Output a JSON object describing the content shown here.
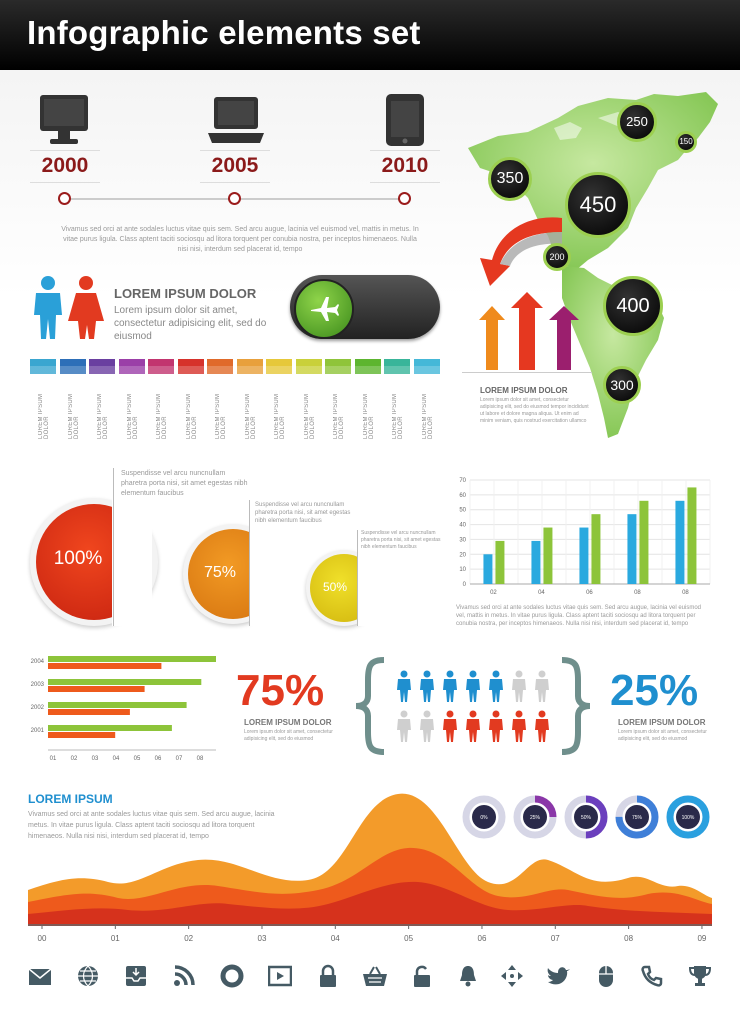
{
  "header": {
    "title": "Infographic elements set"
  },
  "timeline": {
    "items": [
      {
        "year": "2000",
        "icon": "monitor-icon"
      },
      {
        "year": "2005",
        "icon": "laptop-icon"
      },
      {
        "year": "2010",
        "icon": "tablet-icon"
      }
    ],
    "text": "Vivamus sed orci at ante sodales luctus vitae quis sem. Sed arcu augue, lacinia vel euismod vel, mattis in metus. In vitae purus ligula. Class aptent taciti sociosqu ad litora torquent per conubia nostra, per inceptos himenaeos. Nulla nisi nisi, interdum sed placerat id, tempo"
  },
  "people_block": {
    "title": "LOREM IPSUM DOLOR",
    "text": "Lorem ipsum dolor sit amet, consectetur adipisicing elit, sed do eiusmod"
  },
  "swatches": {
    "colors": [
      "#3aa6d0",
      "#2d6fb8",
      "#6a3fa0",
      "#9b3fa8",
      "#c2356f",
      "#d6322b",
      "#e06a2a",
      "#e8a03c",
      "#e6c83a",
      "#c9d03a",
      "#8fc43a",
      "#5db52f",
      "#39b59a",
      "#45b8d8"
    ],
    "label": "LOREM IPSUM DOLOR"
  },
  "map": {
    "bubbles": [
      "250",
      "150",
      "350",
      "450",
      "200",
      "400",
      "300"
    ],
    "title": "LOREM IPSUM DOLOR",
    "text": "Lorem ipsum dolor sit amet, consectetur adipisicing elit, sed do eiusmod tempor incididunt ut labore et dolore magna aliqua. Ut enim ad minim veniam, quis nostrud exercitation ullamco"
  },
  "circles": [
    {
      "label": "100%",
      "text": "Suspendisse vel arcu nuncnullam pharetra porta nisi, sit amet egestas nibh elementum faucibus",
      "color": "#e83a1e"
    },
    {
      "label": "75%",
      "text": "Suspendisse vel arcu nuncnullam pharetra porta nisi, sit amet egestas nibh elementum faucibus",
      "color": "#ef8a1c"
    },
    {
      "label": "50%",
      "text": "Suspendisse vel arcu nuncnullam pharetra porta nisi, sit amet egestas nibh elementum faucibus",
      "color": "#e8d21c"
    }
  ],
  "chart_data": [
    {
      "type": "bar",
      "categories": [
        "02",
        "04",
        "06",
        "08",
        "08"
      ],
      "series": [
        {
          "values": [
            20,
            29,
            38,
            47,
            56
          ],
          "color": "#2aa9df"
        },
        {
          "values": [
            29,
            38,
            47,
            56,
            65
          ],
          "color": "#8dc43a"
        }
      ],
      "yticks": [
        "0",
        "10",
        "20",
        "30",
        "40",
        "50",
        "60",
        "70"
      ],
      "ylim": [
        0,
        70
      ],
      "caption": "Vivamus sed orci at ante sodales luctus vitae quis sem. Sed arcu augue, lacinia vel euismod vel, mattis in metus. In vitae purus ligula. Class aptent taciti sociosqu ad litora torquent per conubia nostra, per inceptos himenaeos. Nulla nisi nisi, interdum sed placerat id, tempo"
    },
    {
      "type": "bar",
      "orientation": "horizontal",
      "categories": [
        "2004",
        "2003",
        "2002",
        "2001"
      ],
      "series": [
        {
          "values": [
            8,
            7.3,
            6.6,
            5.9
          ],
          "color": "#8dc43a"
        },
        {
          "values": [
            5.4,
            4.6,
            3.9,
            3.2
          ],
          "color": "#ee5a1c"
        }
      ],
      "xticks": [
        "01",
        "02",
        "03",
        "04",
        "05",
        "06",
        "07",
        "08"
      ],
      "xlim": [
        0,
        8
      ]
    },
    {
      "type": "area",
      "xticks": [
        "00",
        "01",
        "02",
        "03",
        "04",
        "05",
        "06",
        "07",
        "08",
        "09"
      ],
      "title": "LOREM IPSUM",
      "text": "Vivamus sed orci at ante sodales luctus vitae quis sem. Sed arcu augue, lacinia metus. In vitae purus ligula. Class aptent taciti sociosqu ad litora torquent himenaeos. Nulla nisi nisi, interdum sed placerat id, tempo"
    }
  ],
  "ratio": {
    "left_pct": "75%",
    "left_title": "LOREM IPSUM DOLOR",
    "left_text": "Lorem ipsum dolor sit amet, consectetur adipisicing elit, sed do eiusmod",
    "right_pct": "25%",
    "right_title": "LOREM IPSUM DOLOR",
    "right_text": "Lorem ipsum dolor sit amet, consectetur adipisicing elit, sed do eiusmod"
  },
  "rings": [
    {
      "label": "0%",
      "value": 0
    },
    {
      "label": "25%",
      "value": 25
    },
    {
      "label": "50%",
      "value": 50
    },
    {
      "label": "75%",
      "value": 75
    },
    {
      "label": "100%",
      "value": 100
    }
  ],
  "bottom_icons": [
    "envelope-icon",
    "globe-icon",
    "inbox-icon",
    "rss-icon",
    "lifebuoy-icon",
    "video-icon",
    "lock-icon",
    "basket-icon",
    "unlock-icon",
    "bell-icon",
    "move-icon",
    "bird-icon",
    "mouse-icon",
    "phone-icon",
    "trophy-icon"
  ]
}
